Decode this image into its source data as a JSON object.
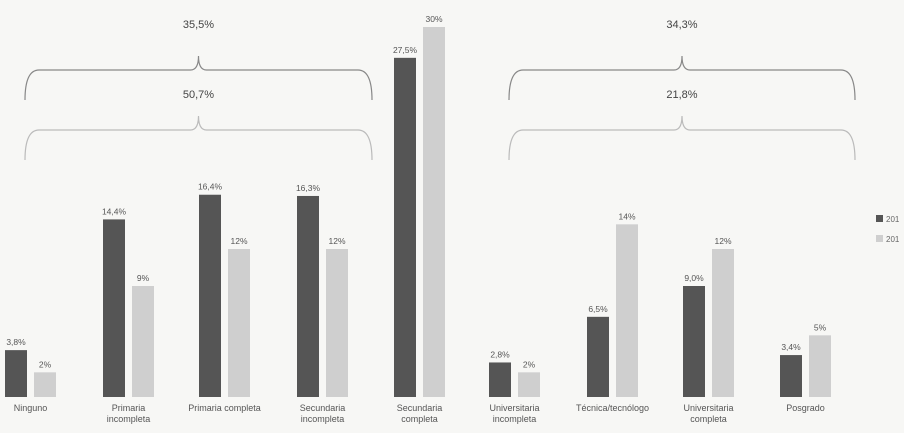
{
  "chart_data": {
    "type": "bar",
    "categories": [
      [
        "Ninguno"
      ],
      [
        "Primaria",
        "incompleta"
      ],
      [
        "Primaria completa"
      ],
      [
        "Secundaria",
        "incompleta"
      ],
      [
        "Secundaria",
        "completa"
      ],
      [
        "Universitaria",
        "incompleta"
      ],
      [
        "Técnica/tecnólogo"
      ],
      [
        "Universitaria",
        "completa"
      ],
      [
        "Posgrado"
      ]
    ],
    "series": [
      {
        "name": "201",
        "color": "#555555",
        "values": [
          3.8,
          14.4,
          16.4,
          16.3,
          27.5,
          2.8,
          6.5,
          9.0,
          3.4
        ],
        "labels": [
          "3,8%",
          "14,4%",
          "16,4%",
          "16,3%",
          "27,5%",
          "2,8%",
          "6,5%",
          "9,0%",
          "3,4%"
        ]
      },
      {
        "name": "201",
        "color": "#cfcfcf",
        "values": [
          2,
          9,
          12,
          12,
          30,
          2,
          14,
          12,
          5
        ],
        "labels": [
          "2%",
          "9%",
          "12%",
          "12%",
          "30%",
          "2%",
          "14%",
          "12%",
          "5%"
        ]
      }
    ],
    "ylim": [
      0,
      30
    ],
    "grid": false,
    "legend": "right",
    "brackets": [
      {
        "label": "35,5%",
        "from": 0,
        "to": 3,
        "level": "top"
      },
      {
        "label": "50,7%",
        "from": 0,
        "to": 3,
        "level": "bottom"
      },
      {
        "label": "34,3%",
        "from": 5,
        "to": 8,
        "level": "top"
      },
      {
        "label": "21,8%",
        "from": 5,
        "to": 8,
        "level": "bottom"
      }
    ]
  }
}
